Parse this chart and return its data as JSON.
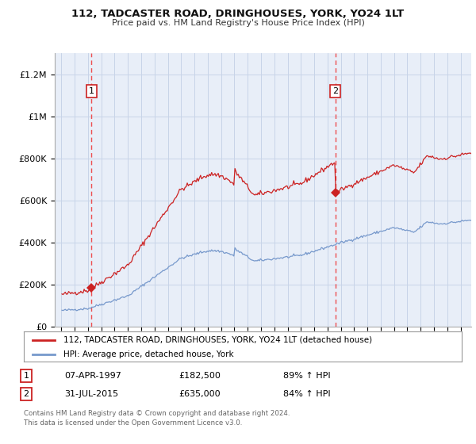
{
  "title": "112, TADCASTER ROAD, DRINGHOUSES, YORK, YO24 1LT",
  "subtitle": "Price paid vs. HM Land Registry's House Price Index (HPI)",
  "sale1_year": 1997.27,
  "sale1_price": 182500,
  "sale1_label": "1",
  "sale2_year": 2015.58,
  "sale2_price": 635000,
  "sale2_label": "2",
  "ylim_min": 0,
  "ylim_max": 1300000,
  "xlim_min": 1994.5,
  "xlim_max": 2025.8,
  "grid_color": "#c8d4e8",
  "plot_bg_color": "#e8eef8",
  "red_line_color": "#cc2222",
  "blue_line_color": "#7799cc",
  "dashed_line_color": "#ee3333",
  "legend_label1": "112, TADCASTER ROAD, DRINGHOUSES, YORK, YO24 1LT (detached house)",
  "legend_label2": "HPI: Average price, detached house, York",
  "table_row1": [
    "1",
    "07-APR-1997",
    "£182,500",
    "89% ↑ HPI"
  ],
  "table_row2": [
    "2",
    "31-JUL-2015",
    "£635,000",
    "84% ↑ HPI"
  ],
  "footer": "Contains HM Land Registry data © Crown copyright and database right 2024.\nThis data is licensed under the Open Government Licence v3.0.",
  "yticks": [
    0,
    200000,
    400000,
    600000,
    800000,
    1000000,
    1200000
  ],
  "ytick_labels": [
    "£0",
    "£200K",
    "£400K",
    "£600K",
    "£800K",
    "£1M",
    "£1.2M"
  ],
  "xticks": [
    1995,
    1996,
    1997,
    1998,
    1999,
    2000,
    2001,
    2002,
    2003,
    2004,
    2005,
    2006,
    2007,
    2008,
    2009,
    2010,
    2011,
    2012,
    2013,
    2014,
    2015,
    2016,
    2017,
    2018,
    2019,
    2020,
    2021,
    2022,
    2023,
    2024,
    2025
  ]
}
